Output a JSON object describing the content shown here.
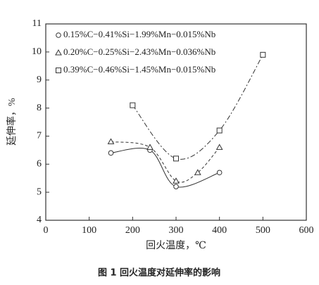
{
  "chart_data": {
    "type": "line",
    "xlabel": "回火温度，℃",
    "ylabel": "延伸率，%",
    "caption": "图 1    回火温度对延伸率的影响",
    "xlim": [
      0,
      600
    ],
    "xticks": [
      0,
      100,
      200,
      300,
      400,
      500,
      600
    ],
    "ylim": [
      4,
      11
    ],
    "yticks": [
      4,
      5,
      6,
      7,
      8,
      9,
      10,
      11
    ],
    "series": [
      {
        "name": "0.15%C−0.41%Si−1.99%Mn−0.015%Nb",
        "color": "#333333",
        "marker": "circle",
        "linestyle": "solid",
        "x": [
          150,
          240,
          300,
          400
        ],
        "values": [
          6.4,
          6.5,
          5.2,
          5.7
        ]
      },
      {
        "name": "0.20%C−0.25%Si−2.43%Mn−0.036%Nb",
        "color": "#333333",
        "marker": "triangle",
        "linestyle": "dashed",
        "x": [
          150,
          240,
          300,
          350,
          400
        ],
        "values": [
          6.8,
          6.6,
          5.4,
          5.7,
          6.6
        ]
      },
      {
        "name": "0.39%C−0.46%Si−1.45%Mn−0.015%Nb",
        "color": "#333333",
        "marker": "square",
        "linestyle": "dashdot",
        "x": [
          200,
          300,
          400,
          500
        ],
        "values": [
          8.1,
          6.2,
          7.2,
          9.9
        ]
      }
    ]
  }
}
